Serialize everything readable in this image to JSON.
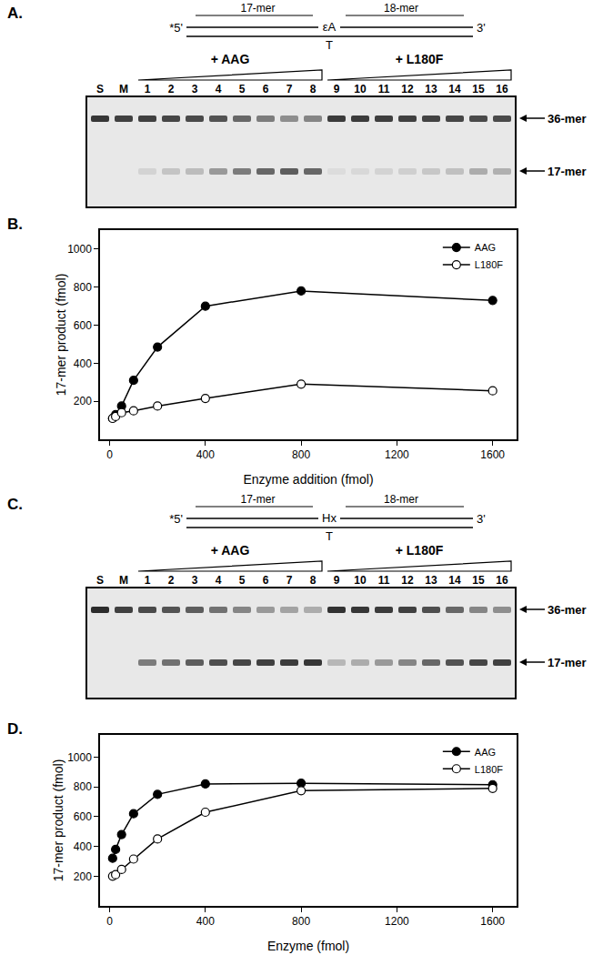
{
  "chart_data": [
    {
      "type": "line",
      "title": "B.",
      "x_label": "Enzyme addition (fmol)",
      "y_label": "17-mer product (fmol)",
      "x": [
        12.5,
        25,
        50,
        100,
        200,
        400,
        800,
        1600
      ],
      "series": [
        {
          "name": "AAG",
          "color": "#000000",
          "marker": "filled",
          "values": [
            110,
            130,
            175,
            310,
            485,
            700,
            780,
            730
          ]
        },
        {
          "name": "L180F",
          "color": "#000000",
          "marker": "open",
          "values": [
            110,
            120,
            140,
            150,
            175,
            215,
            290,
            255
          ]
        }
      ],
      "xlim": [
        -40,
        1700
      ],
      "xticks": [
        0,
        400,
        800,
        1200,
        1600
      ],
      "ylim": [
        0,
        1100
      ],
      "yticks": [
        200,
        400,
        600,
        800,
        1000
      ],
      "legend": "upper right"
    },
    {
      "type": "line",
      "title": "D.",
      "x_label": "Enzyme (fmol)",
      "y_label": "17-mer product (fmol)",
      "x": [
        12.5,
        25,
        50,
        100,
        200,
        400,
        800,
        1600
      ],
      "series": [
        {
          "name": "AAG",
          "color": "#000000",
          "marker": "filled",
          "values": [
            320,
            380,
            480,
            620,
            750,
            820,
            825,
            815
          ]
        },
        {
          "name": "L180F",
          "color": "#000000",
          "marker": "open",
          "values": [
            200,
            210,
            245,
            315,
            450,
            630,
            775,
            790
          ]
        }
      ],
      "xlim": [
        -40,
        1700
      ],
      "xticks": [
        0,
        400,
        800,
        1200,
        1600
      ],
      "ylim": [
        0,
        1150
      ],
      "yticks": [
        200,
        400,
        600,
        800,
        1000
      ],
      "legend": "upper right"
    }
  ],
  "gels": [
    {
      "title": "A.",
      "diagram": {
        "five_prime": "*5'",
        "left": "17-mer",
        "lesion": "εA",
        "right": "18-mer",
        "three_prime": "3'",
        "opposite": "T"
      },
      "lanes": [
        "S",
        "M",
        "1",
        "2",
        "3",
        "4",
        "5",
        "6",
        "7",
        "8",
        "9",
        "10",
        "11",
        "12",
        "13",
        "14",
        "15",
        "16"
      ],
      "groups": [
        {
          "label": "+ AAG",
          "lanes": [
            "1",
            "2",
            "3",
            "4",
            "5",
            "6",
            "7",
            "8"
          ]
        },
        {
          "label": "+ L180F",
          "lanes": [
            "9",
            "10",
            "11",
            "12",
            "13",
            "14",
            "15",
            "16"
          ]
        }
      ],
      "bands": [
        {
          "label": "36-mer",
          "intensity": [
            0.9,
            0.85,
            0.85,
            0.82,
            0.8,
            0.75,
            0.65,
            0.55,
            0.45,
            0.5,
            0.88,
            0.88,
            0.86,
            0.85,
            0.84,
            0.82,
            0.8,
            0.8
          ]
        },
        {
          "label": "17-mer",
          "intensity": [
            0,
            0,
            0.1,
            0.18,
            0.22,
            0.4,
            0.55,
            0.65,
            0.7,
            0.65,
            0.06,
            0.08,
            0.1,
            0.12,
            0.16,
            0.2,
            0.3,
            0.28
          ]
        }
      ]
    },
    {
      "title": "C.",
      "diagram": {
        "five_prime": "*5'",
        "left": "17-mer",
        "lesion": "Hx",
        "right": "18-mer",
        "three_prime": "3'",
        "opposite": "T"
      },
      "lanes": [
        "S",
        "M",
        "1",
        "2",
        "3",
        "4",
        "5",
        "6",
        "7",
        "8",
        "9",
        "10",
        "11",
        "12",
        "13",
        "14",
        "15",
        "16"
      ],
      "groups": [
        {
          "label": "+ AAG",
          "lanes": [
            "1",
            "2",
            "3",
            "4",
            "5",
            "6",
            "7",
            "8"
          ]
        },
        {
          "label": "+ L180F",
          "lanes": [
            "9",
            "10",
            "11",
            "12",
            "13",
            "14",
            "15",
            "16"
          ]
        }
      ],
      "bands": [
        {
          "label": "36-mer",
          "intensity": [
            0.95,
            0.85,
            0.8,
            0.75,
            0.7,
            0.6,
            0.5,
            0.4,
            0.35,
            0.3,
            0.92,
            0.9,
            0.88,
            0.85,
            0.78,
            0.65,
            0.5,
            0.45
          ]
        },
        {
          "label": "17-mer",
          "intensity": [
            0,
            0,
            0.55,
            0.6,
            0.7,
            0.78,
            0.82,
            0.85,
            0.87,
            0.9,
            0.25,
            0.3,
            0.4,
            0.5,
            0.65,
            0.75,
            0.82,
            0.85
          ]
        }
      ]
    }
  ]
}
